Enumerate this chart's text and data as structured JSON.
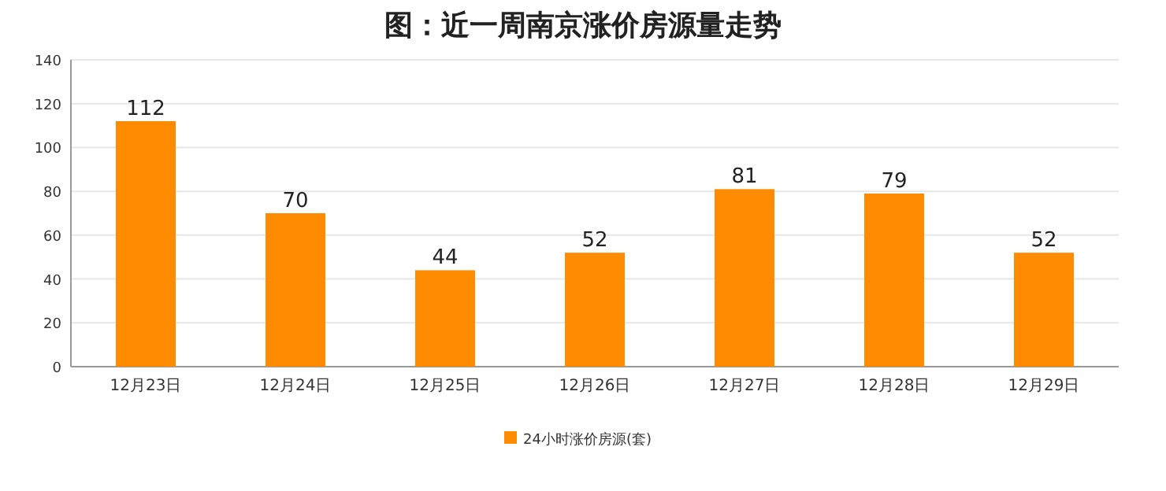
{
  "chart_data": {
    "type": "bar",
    "title": "图：近一周南京涨价房源量走势",
    "categories": [
      "12月23日",
      "12月24日",
      "12月25日",
      "12月26日",
      "12月27日",
      "12月28日",
      "12月29日"
    ],
    "series": [
      {
        "name": "24小时涨价房源(套)",
        "color": "#ff8c00",
        "values": [
          112,
          70,
          44,
          52,
          81,
          79,
          52
        ]
      }
    ],
    "ylim": [
      0,
      140
    ],
    "yticks": [
      0,
      20,
      40,
      60,
      80,
      100,
      120,
      140
    ],
    "grid": "y",
    "data_labels": true,
    "legend": "bottom"
  }
}
